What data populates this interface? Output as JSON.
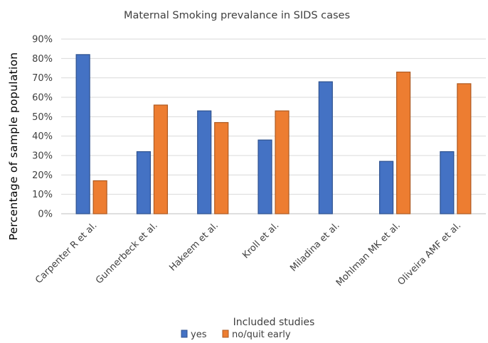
{
  "chart_data": {
    "type": "bar",
    "title": "Maternal Smoking prevalance in SIDS cases",
    "xlabel": "Included studies",
    "ylabel": "Percentage of  sample  population",
    "categories": [
      "Carpenter R et al.",
      "Gunnerbeck et al.",
      "Hakeem et al.",
      "Kroll et al.",
      "Miladina et al.",
      "Mohlman MK et al.",
      "Oliveira AMF et al."
    ],
    "series": [
      {
        "name": "yes",
        "color": "#4472c4",
        "values": [
          82,
          32,
          53,
          38,
          68,
          27,
          32
        ]
      },
      {
        "name": "no/quit early",
        "color": "#ed7d31",
        "values": [
          17,
          56,
          47,
          53,
          null,
          73,
          67
        ]
      }
    ],
    "ylim": [
      0,
      90
    ],
    "yticks": [
      "0%",
      "10%",
      "20%",
      "30%",
      "40%",
      "50%",
      "60%",
      "70%",
      "80%",
      "90%"
    ],
    "grid": true,
    "legend_position": "bottom"
  }
}
